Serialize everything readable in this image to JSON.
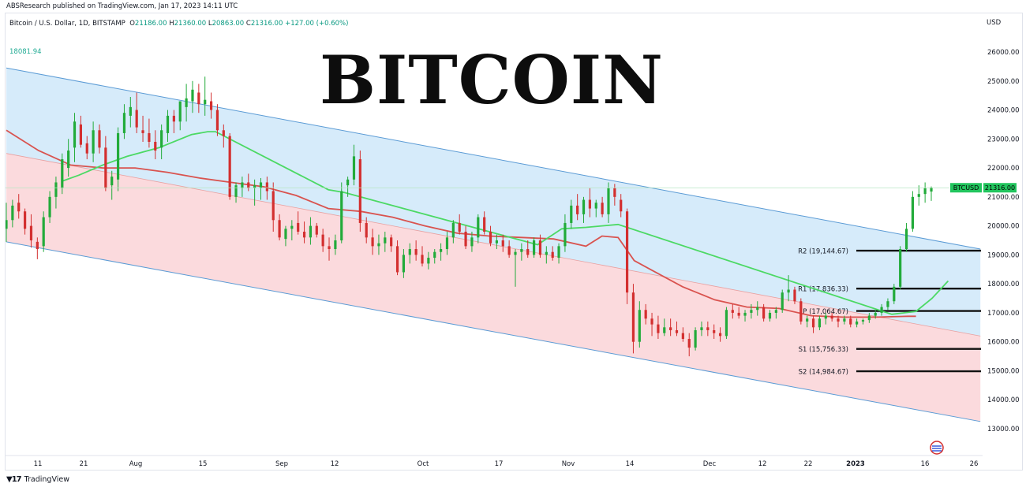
{
  "header": {
    "published_by": "ABSResearch published on TradingView.com, Jan 17, 2023 14:11 UTC",
    "symbol_line": "Bitcoin / U.S. Dollar, 1D, BITSTAMP",
    "ohlc": {
      "o_label": "O",
      "o": "21186.00",
      "h_label": "H",
      "h": "21360.00",
      "l_label": "L",
      "l": "20863.00",
      "c_label": "C",
      "c": "21316.00",
      "change": "+127.00 (+0.60%)"
    },
    "high_marker": "18081.94"
  },
  "title": "BITCOIN",
  "footer": {
    "brand": "TradingView",
    "logo": "tradingview-logo-icon"
  },
  "colors": {
    "up": "#22ab3a",
    "down": "#d32f2f",
    "upper_band": "#d6ebfa",
    "lower_band": "#fbdadd",
    "channel_line": "#5b9bd5",
    "ma_red": "#d9534f",
    "ma_green": "#4cd964",
    "price_line": "#22c55e"
  },
  "chart_data": {
    "type": "candlestick",
    "instrument": "Bitcoin / U.S. Dollar",
    "timeframe": "1D",
    "exchange": "BITSTAMP",
    "currency": "USD",
    "ylim": [
      12600,
      26800
    ],
    "y_ticks": [
      "13000.00",
      "14000.00",
      "15000.00",
      "16000.00",
      "17000.00",
      "18000.00",
      "19000.00",
      "20000.00",
      "21000.00",
      "22000.00",
      "23000.00",
      "24000.00",
      "25000.00",
      "26000.00"
    ],
    "x_ticks": [
      "11",
      "21",
      "Aug",
      "15",
      "Sep",
      "12",
      "Oct",
      "17",
      "Nov",
      "14",
      "Dec",
      "12",
      "22",
      "2023",
      "16",
      "26"
    ],
    "last_price": {
      "label": "BTCUSD",
      "value": "21316.00",
      "y": 21316
    },
    "levels": [
      {
        "label": "R2 (19,144.67)",
        "value": 19144.67
      },
      {
        "label": "R1 (17,836.33)",
        "value": 17836.33
      },
      {
        "label": "P (17,064.67)",
        "value": 17064.67
      },
      {
        "label": "S1 (15,756.33)",
        "value": 15756.33
      },
      {
        "label": "S2 (14,984.67)",
        "value": 14984.67
      }
    ],
    "channel": {
      "top": [
        [
          0,
          25450
        ],
        [
          242,
          19200
        ]
      ],
      "mid": [
        [
          0,
          22500
        ],
        [
          242,
          16200
        ]
      ],
      "bottom": [
        [
          0,
          19450
        ],
        [
          242,
          13250
        ]
      ]
    },
    "ma_red": [
      [
        0,
        23300
      ],
      [
        8,
        22600
      ],
      [
        16,
        22100
      ],
      [
        24,
        22000
      ],
      [
        32,
        22000
      ],
      [
        40,
        21850
      ],
      [
        48,
        21650
      ],
      [
        56,
        21500
      ],
      [
        64,
        21350
      ],
      [
        72,
        21050
      ],
      [
        80,
        20600
      ],
      [
        88,
        20500
      ],
      [
        96,
        20300
      ],
      [
        104,
        20000
      ],
      [
        112,
        19750
      ],
      [
        120,
        19650
      ],
      [
        128,
        19600
      ],
      [
        136,
        19550
      ],
      [
        144,
        19300
      ],
      [
        148,
        19650
      ],
      [
        152,
        19600
      ],
      [
        156,
        18800
      ],
      [
        160,
        18500
      ],
      [
        168,
        17900
      ],
      [
        176,
        17450
      ],
      [
        184,
        17200
      ],
      [
        192,
        17150
      ],
      [
        200,
        16900
      ],
      [
        208,
        16850
      ],
      [
        216,
        16850
      ],
      [
        224,
        16880
      ],
      [
        226,
        16880
      ]
    ],
    "ma_green": [
      [
        14,
        21550
      ],
      [
        18,
        21750
      ],
      [
        24,
        22100
      ],
      [
        30,
        22400
      ],
      [
        38,
        22700
      ],
      [
        46,
        23150
      ],
      [
        50,
        23250
      ],
      [
        52,
        23250
      ],
      [
        80,
        21250
      ],
      [
        84,
        21150
      ],
      [
        132,
        19350
      ],
      [
        138,
        19900
      ],
      [
        144,
        19950
      ],
      [
        148,
        20000
      ],
      [
        152,
        20050
      ],
      [
        220,
        16950
      ],
      [
        226,
        17050
      ],
      [
        230,
        17500
      ],
      [
        234,
        18100
      ]
    ],
    "candles": [
      [
        19900,
        20800,
        19450,
        20200
      ],
      [
        20200,
        20900,
        19950,
        20700
      ],
      [
        20800,
        21100,
        20250,
        20500
      ],
      [
        20500,
        20600,
        19700,
        19900
      ],
      [
        20000,
        20400,
        19250,
        19500
      ],
      [
        19450,
        19600,
        18850,
        19200
      ],
      [
        19300,
        20500,
        19100,
        20300
      ],
      [
        20300,
        21200,
        20100,
        21000
      ],
      [
        21000,
        21700,
        20600,
        21500
      ],
      [
        21300,
        22500,
        21100,
        22300
      ],
      [
        22000,
        23000,
        21700,
        22600
      ],
      [
        22700,
        23900,
        22200,
        23600
      ],
      [
        23500,
        23800,
        22700,
        22800
      ],
      [
        22850,
        23100,
        22300,
        22500
      ],
      [
        22500,
        23600,
        22200,
        23300
      ],
      [
        23300,
        23500,
        22500,
        22700
      ],
      [
        22700,
        23100,
        21200,
        21300
      ],
      [
        21400,
        21900,
        20900,
        21700
      ],
      [
        21600,
        23400,
        21200,
        23200
      ],
      [
        23200,
        24200,
        23000,
        23900
      ],
      [
        23800,
        24450,
        23400,
        24100
      ],
      [
        24000,
        24600,
        23200,
        23400
      ],
      [
        23300,
        23800,
        22900,
        23200
      ],
      [
        23200,
        23700,
        22700,
        22900
      ],
      [
        22900,
        23300,
        22300,
        22600
      ],
      [
        22700,
        23500,
        22300,
        23300
      ],
      [
        23200,
        24000,
        22900,
        23800
      ],
      [
        23800,
        24000,
        23200,
        23600
      ],
      [
        23600,
        24200,
        23300,
        24300
      ],
      [
        24100,
        24900,
        23600,
        24400
      ],
      [
        24300,
        25000,
        23900,
        24700
      ],
      [
        24600,
        24900,
        23900,
        24200
      ],
      [
        24200,
        25150,
        23800,
        24350
      ],
      [
        24300,
        24600,
        23700,
        24000
      ],
      [
        24000,
        24200,
        23100,
        23300
      ],
      [
        23300,
        23500,
        22700,
        23100
      ],
      [
        23100,
        23200,
        20900,
        21000
      ],
      [
        21000,
        21500,
        20800,
        21400
      ],
      [
        21300,
        21700,
        21000,
        21500
      ],
      [
        21500,
        21800,
        21200,
        21300
      ],
      [
        21300,
        21600,
        20700,
        21400
      ],
      [
        21300,
        21650,
        20900,
        21500
      ],
      [
        21500,
        21700,
        20900,
        21200
      ],
      [
        21200,
        21500,
        19800,
        20200
      ],
      [
        20200,
        20400,
        19500,
        19600
      ],
      [
        19550,
        20000,
        19300,
        19900
      ],
      [
        19900,
        20200,
        19500,
        20000
      ],
      [
        20100,
        20500,
        19700,
        19800
      ],
      [
        19800,
        20150,
        19400,
        19600
      ],
      [
        19600,
        20300,
        19350,
        20000
      ],
      [
        20000,
        20100,
        19600,
        19700
      ],
      [
        19700,
        19900,
        19100,
        19300
      ],
      [
        19300,
        19600,
        18800,
        19200
      ],
      [
        19200,
        19700,
        19000,
        19500
      ],
      [
        19500,
        21500,
        19400,
        21200
      ],
      [
        21400,
        21700,
        21000,
        21600
      ],
      [
        21600,
        22800,
        21400,
        22400
      ],
      [
        22300,
        22600,
        19800,
        20100
      ],
      [
        20100,
        20300,
        19400,
        19600
      ],
      [
        19600,
        19900,
        19000,
        19300
      ],
      [
        19300,
        19700,
        19000,
        19400
      ],
      [
        19400,
        19800,
        19100,
        19600
      ],
      [
        19600,
        19700,
        19100,
        19300
      ],
      [
        19300,
        19500,
        18300,
        18400
      ],
      [
        18400,
        19200,
        18200,
        19000
      ],
      [
        19000,
        19400,
        18700,
        19200
      ],
      [
        19200,
        19500,
        18800,
        19000
      ],
      [
        19000,
        19300,
        18600,
        18700
      ],
      [
        18700,
        19100,
        18500,
        18900
      ],
      [
        18900,
        19200,
        18700,
        19100
      ],
      [
        19100,
        19400,
        18800,
        19200
      ],
      [
        19200,
        19800,
        19000,
        19600
      ],
      [
        19600,
        20200,
        19400,
        20100
      ],
      [
        20100,
        20400,
        19700,
        19800
      ],
      [
        19800,
        20000,
        19200,
        19300
      ],
      [
        19300,
        19800,
        19100,
        19600
      ],
      [
        19600,
        20400,
        19400,
        20300
      ],
      [
        20300,
        20500,
        19700,
        19800
      ],
      [
        19800,
        20000,
        19300,
        19400
      ],
      [
        19400,
        19700,
        19200,
        19500
      ],
      [
        19500,
        19700,
        19100,
        19300
      ],
      [
        19300,
        19500,
        18900,
        19000
      ],
      [
        19000,
        19200,
        17900,
        19100
      ],
      [
        19100,
        19400,
        18800,
        19200
      ],
      [
        19200,
        19500,
        18900,
        19000
      ],
      [
        19000,
        19600,
        18900,
        19500
      ],
      [
        19500,
        19700,
        18900,
        19000
      ],
      [
        19000,
        19300,
        18700,
        19100
      ],
      [
        19100,
        19300,
        18800,
        18900
      ],
      [
        18900,
        19400,
        18700,
        19300
      ],
      [
        19300,
        20400,
        19100,
        20100
      ],
      [
        20100,
        20900,
        19900,
        20700
      ],
      [
        20700,
        21100,
        20200,
        20400
      ],
      [
        20400,
        21000,
        20100,
        20900
      ],
      [
        20900,
        21300,
        20300,
        20600
      ],
      [
        20600,
        20900,
        20300,
        20800
      ],
      [
        20800,
        21000,
        20300,
        20400
      ],
      [
        20400,
        21500,
        20100,
        21300
      ],
      [
        21300,
        21450,
        20700,
        21000
      ],
      [
        20900,
        21100,
        20300,
        20500
      ],
      [
        20500,
        20600,
        17300,
        17700
      ],
      [
        17700,
        18000,
        15600,
        16000
      ],
      [
        16000,
        17400,
        15800,
        17100
      ],
      [
        17100,
        17300,
        16600,
        16800
      ],
      [
        16800,
        17000,
        16200,
        16600
      ],
      [
        16600,
        16900,
        16100,
        16300
      ],
      [
        16300,
        16800,
        16200,
        16500
      ],
      [
        16500,
        16800,
        16200,
        16400
      ],
      [
        16400,
        16700,
        16200,
        16300
      ],
      [
        16300,
        16500,
        16000,
        16100
      ],
      [
        16100,
        16300,
        15500,
        15800
      ],
      [
        15800,
        16500,
        15700,
        16400
      ],
      [
        16400,
        16700,
        16200,
        16500
      ],
      [
        16500,
        16700,
        16200,
        16400
      ],
      [
        16400,
        16600,
        16100,
        16300
      ],
      [
        16300,
        16500,
        16000,
        16200
      ],
      [
        16200,
        17200,
        16100,
        17100
      ],
      [
        17100,
        17300,
        16800,
        17000
      ],
      [
        17000,
        17200,
        16800,
        16900
      ],
      [
        16900,
        17100,
        16700,
        17000
      ],
      [
        17000,
        17300,
        16800,
        17100
      ],
      [
        17100,
        17400,
        16900,
        17200
      ],
      [
        17200,
        17300,
        16700,
        16800
      ],
      [
        16800,
        17100,
        16700,
        17000
      ],
      [
        17000,
        17200,
        16800,
        17100
      ],
      [
        17100,
        17800,
        17000,
        17700
      ],
      [
        17700,
        18300,
        17400,
        17800
      ],
      [
        17800,
        17900,
        17300,
        17400
      ],
      [
        17400,
        17500,
        16600,
        16700
      ],
      [
        16700,
        16900,
        16500,
        16800
      ],
      [
        16800,
        16900,
        16300,
        16500
      ],
      [
        16500,
        16900,
        16400,
        16800
      ],
      [
        16800,
        17000,
        16600,
        16900
      ],
      [
        16900,
        17000,
        16700,
        16800
      ],
      [
        16800,
        16900,
        16500,
        16700
      ],
      [
        16700,
        16900,
        16600,
        16800
      ],
      [
        16800,
        16900,
        16500,
        16600
      ],
      [
        16600,
        16800,
        16500,
        16700
      ],
      [
        16700,
        16800,
        16600,
        16750
      ],
      [
        16750,
        17000,
        16650,
        16900
      ],
      [
        16900,
        17100,
        16800,
        17000
      ],
      [
        17000,
        17300,
        16900,
        17200
      ],
      [
        17200,
        17500,
        17100,
        17400
      ],
      [
        17400,
        18000,
        17300,
        17900
      ],
      [
        17900,
        19300,
        17800,
        19200
      ],
      [
        19200,
        20100,
        19100,
        19900
      ],
      [
        19900,
        21200,
        19800,
        21000
      ],
      [
        21000,
        21400,
        20700,
        21100
      ],
      [
        21100,
        21500,
        20800,
        21300
      ],
      [
        21186,
        21360,
        20863,
        21316
      ]
    ]
  }
}
